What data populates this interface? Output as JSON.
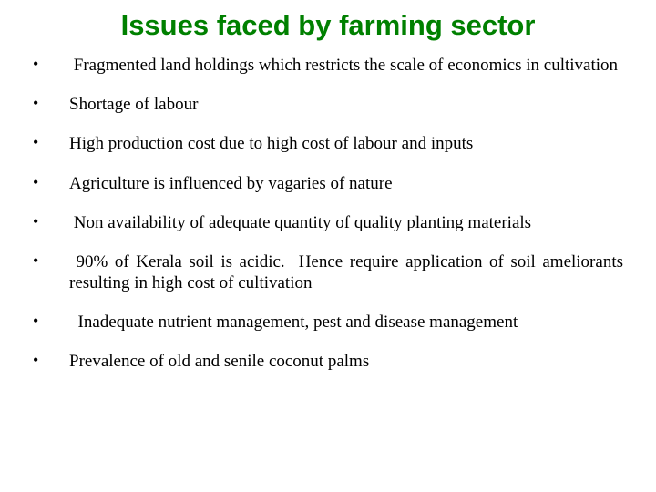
{
  "title": "Issues faced by farming sector",
  "title_color": "#008000",
  "title_font": "Arial",
  "title_fontsize": 31,
  "title_weight": "bold",
  "body_font": "Times New Roman",
  "body_fontsize": 19,
  "body_color": "#000000",
  "background_color": "#ffffff",
  "bullets": [
    {
      "text": " Fragmented land holdings which restricts the scale of economics in cultivation"
    },
    {
      "text": "Shortage of labour"
    },
    {
      "text": "High production cost due to high cost of labour and inputs"
    },
    {
      "text": "Agriculture is influenced by vagaries of nature"
    },
    {
      "text": " Non availability of adequate quantity of quality planting materials"
    },
    {
      "text": " 90% of Kerala soil is acidic.  Hence require application of soil ameliorants resulting in high cost of cultivation"
    },
    {
      "text": "  Inadequate nutrient management, pest and disease management"
    },
    {
      "text": "Prevalence of old and senile coconut palms"
    }
  ]
}
